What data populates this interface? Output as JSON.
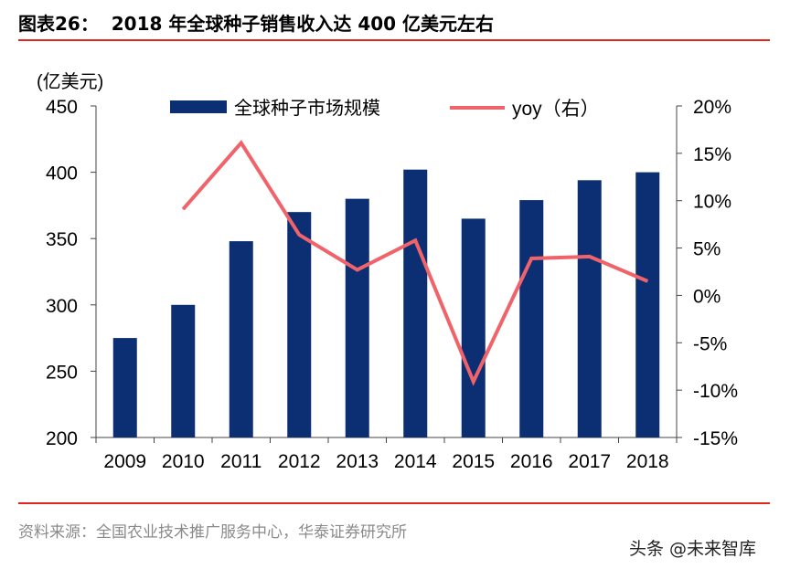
{
  "header": {
    "title": "图表26：  2018 年全球种子销售收入达 400 亿美元左右"
  },
  "footer": {
    "source": "资料来源：全国农业技术推广服务中心，华泰证券研究所",
    "watermark": "头条 @未来智库"
  },
  "colors": {
    "bar": "#0b2f72",
    "line": "#f0636a",
    "rule": "#e0261c"
  },
  "chart_data": {
    "type": "bar+line",
    "unit_label": "(亿美元)",
    "categories": [
      "2009",
      "2010",
      "2011",
      "2012",
      "2013",
      "2014",
      "2015",
      "2016",
      "2017",
      "2018"
    ],
    "series": [
      {
        "name": "全球种子市场规模",
        "type": "bar",
        "axis": "left",
        "values": [
          275,
          300,
          348,
          370,
          380,
          402,
          365,
          379,
          394,
          400
        ]
      },
      {
        "name": "yoy（右）",
        "type": "line",
        "axis": "right",
        "values": [
          null,
          9.1,
          16.1,
          6.4,
          2.7,
          5.8,
          -9.1,
          3.9,
          4.1,
          1.5
        ]
      }
    ],
    "left_axis": {
      "ylim": [
        200,
        450
      ],
      "ticks": [
        "200",
        "250",
        "300",
        "350",
        "400",
        "450"
      ]
    },
    "right_axis": {
      "ylim": [
        -15,
        20
      ],
      "ticks": [
        "-15%",
        "-10%",
        "-5%",
        "0%",
        "5%",
        "10%",
        "15%",
        "20%"
      ]
    },
    "legend": "top",
    "grid": false
  }
}
